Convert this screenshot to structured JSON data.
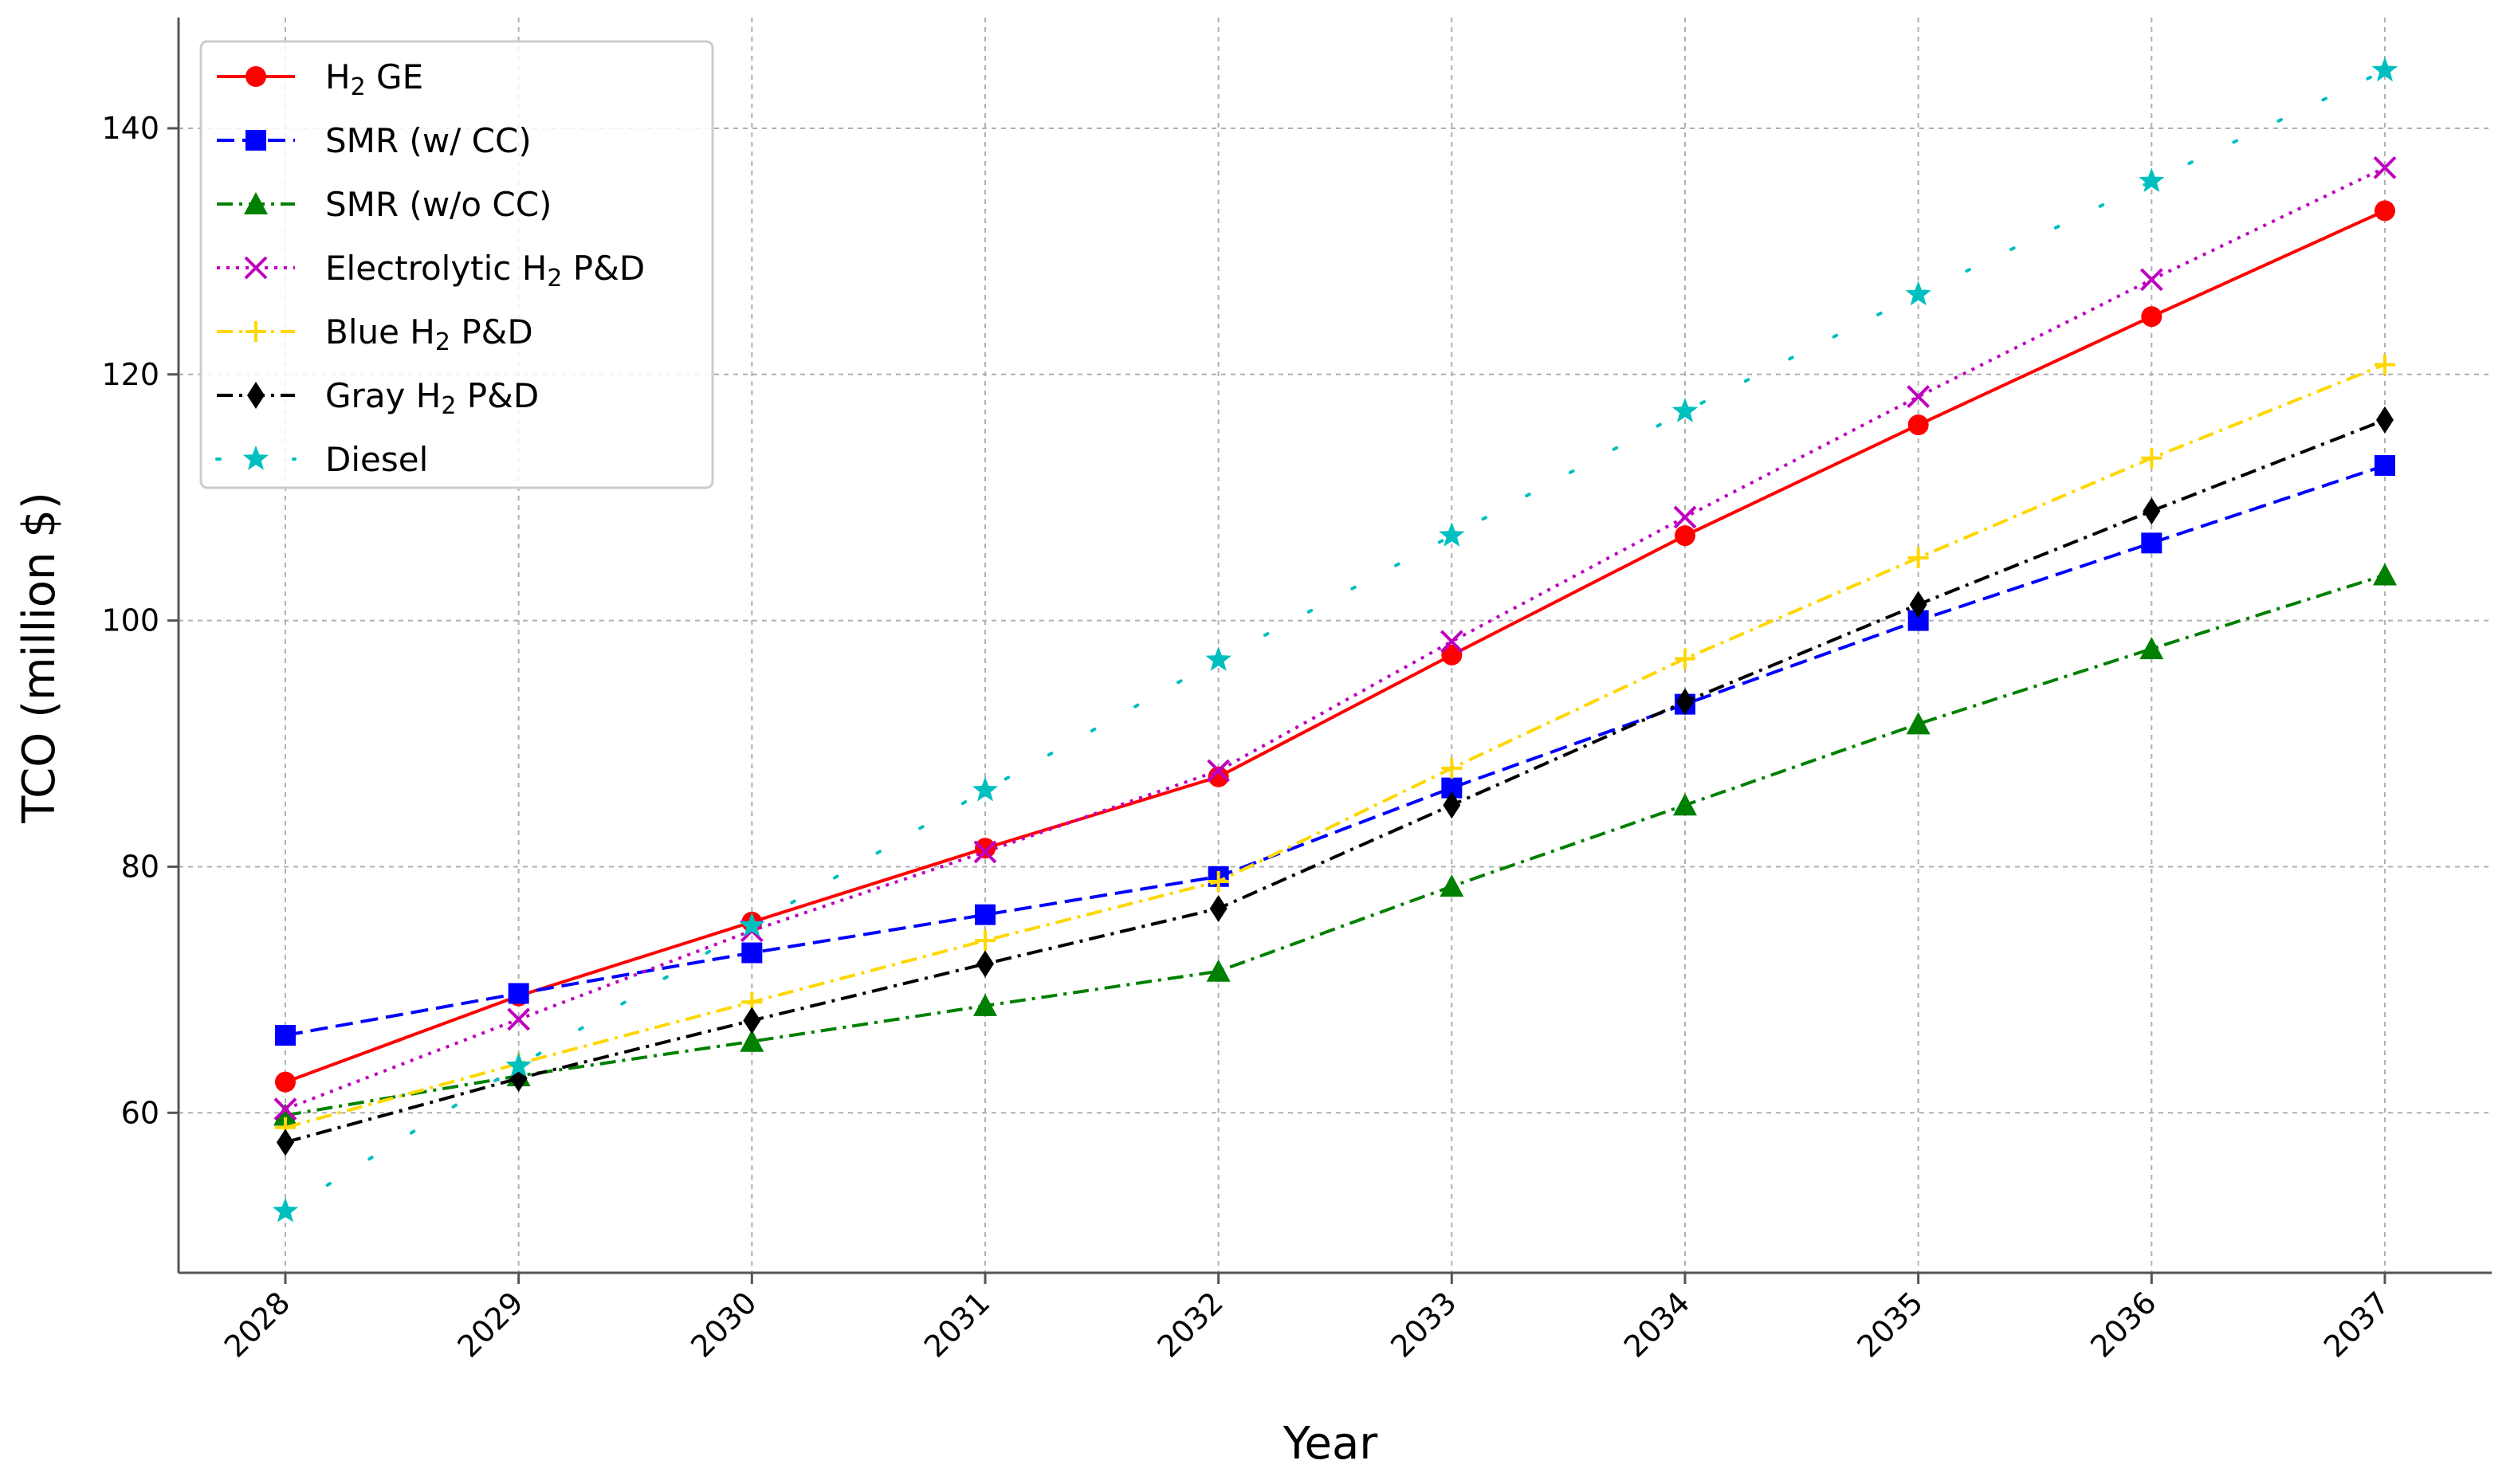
{
  "chart_data": {
    "type": "line",
    "title": "",
    "xlabel": "Year",
    "ylabel": "TCO (million $)",
    "x": [
      2028,
      2029,
      2030,
      2031,
      2032,
      2033,
      2034,
      2035,
      2036,
      2037
    ],
    "xtick_labels": [
      "2028",
      "2029",
      "2030",
      "2031",
      "2032",
      "2033",
      "2034",
      "2035",
      "2036",
      "2037"
    ],
    "yticks": [
      60,
      80,
      100,
      120,
      140
    ],
    "ylim": [
      47,
      149
    ],
    "grid": true,
    "legend_position": "top-left",
    "series": [
      {
        "name": "H₂ GE",
        "legend_main": "H",
        "legend_sub": "2",
        "legend_rest": " GE",
        "color": "#ff0000",
        "line_style": "solid",
        "marker": "circle",
        "values": [
          62.5,
          69.5,
          75.5,
          81.5,
          87.3,
          97.2,
          106.9,
          115.9,
          124.7,
          133.3
        ]
      },
      {
        "name": "SMR (w/ CC)",
        "legend_main": "SMR (w/ CC)",
        "legend_sub": "",
        "legend_rest": "",
        "color": "#0000ff",
        "line_style": "dashed",
        "marker": "square",
        "values": [
          66.3,
          69.7,
          73.0,
          76.1,
          79.2,
          86.4,
          93.2,
          100.0,
          106.3,
          112.6
        ]
      },
      {
        "name": "SMR (w/o CC)",
        "legend_main": "SMR (w/o CC)",
        "legend_sub": "",
        "legend_rest": "",
        "color": "#008000",
        "line_style": "dashdot",
        "marker": "triangle",
        "values": [
          59.8,
          63.0,
          65.8,
          68.7,
          71.5,
          78.4,
          85.0,
          91.6,
          97.7,
          103.7
        ]
      },
      {
        "name": "Electrolytic H₂ P&D",
        "legend_main": "Electrolytic H",
        "legend_sub": "2",
        "legend_rest": " P&D",
        "color": "#bf00bf",
        "line_style": "dotted",
        "marker": "x",
        "values": [
          60.3,
          67.6,
          74.8,
          81.2,
          87.8,
          98.3,
          108.4,
          118.2,
          127.7,
          136.8
        ]
      },
      {
        "name": "Blue H₂ P&D",
        "legend_main": "Blue H",
        "legend_sub": "2",
        "legend_rest": " P&D",
        "color": "#ffd700",
        "line_style": "dashdot",
        "marker": "plus",
        "values": [
          58.8,
          64.0,
          69.0,
          74.0,
          78.8,
          88.0,
          96.9,
          105.1,
          113.2,
          120.8
        ]
      },
      {
        "name": "Gray H₂ P&D",
        "legend_main": "Gray H",
        "legend_sub": "2",
        "legend_rest": " P&D",
        "color": "#000000",
        "line_style": "dashdot",
        "marker": "diamond",
        "values": [
          57.6,
          62.8,
          67.5,
          72.1,
          76.6,
          85.0,
          93.4,
          101.3,
          108.9,
          116.3
        ]
      },
      {
        "name": "Diesel",
        "legend_main": "Diesel",
        "legend_sub": "",
        "legend_rest": "",
        "color": "#00bfbf",
        "line_style": "sparse-dotted",
        "marker": "star",
        "values": [
          52.0,
          63.8,
          75.2,
          86.2,
          96.8,
          106.9,
          117.0,
          126.5,
          135.7,
          144.7
        ]
      }
    ]
  }
}
